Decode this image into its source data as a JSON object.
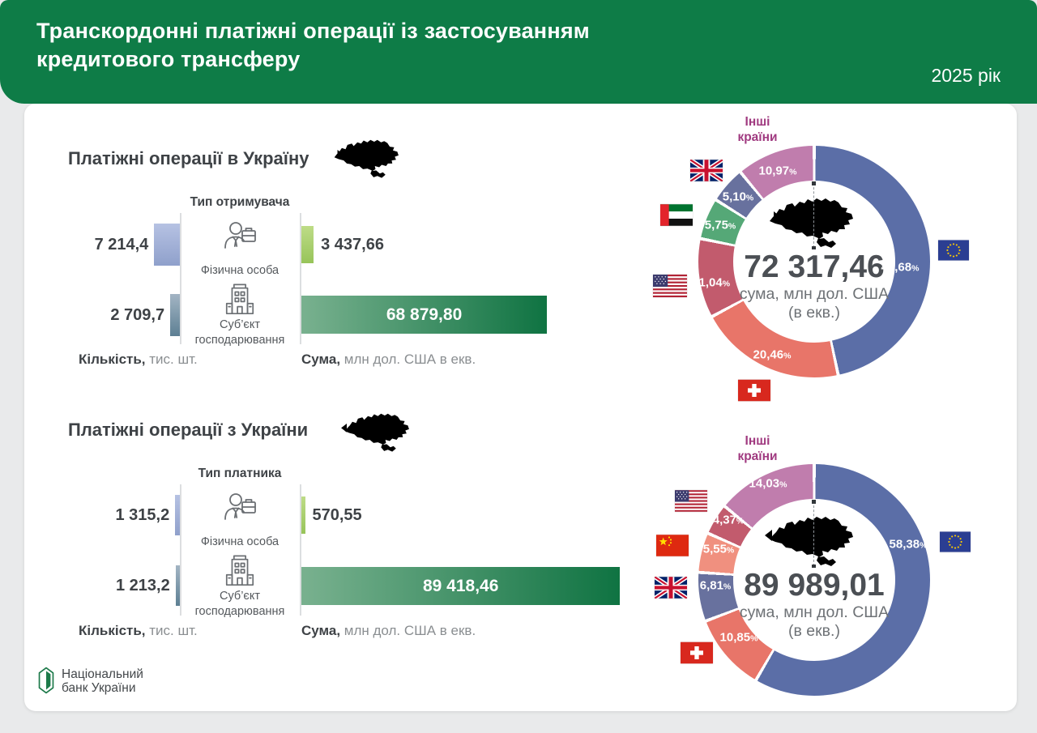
{
  "header": {
    "title": "Транскордонні платіжні операції із застосуванням кредитового трансферу",
    "year": "2025 рік",
    "accent_color": "#0e7c47"
  },
  "percent_sign": "%",
  "sections": [
    {
      "title": "Платіжні операції в Україну",
      "map_icon": "ukraine-map-arrow-in",
      "type_label": "Тип отримувача",
      "rows": [
        {
          "label": "Фізична особа",
          "icon": "person-icon",
          "count": "7 214,4",
          "count_num": 7214.4,
          "sum": "3 437,66",
          "sum_num": 3437.66
        },
        {
          "label_line1": "Суб’єкт",
          "label_line2": "господарювання",
          "icon": "building-icon",
          "count": "2 709,7",
          "count_num": 2709.7,
          "sum": "68 879,80",
          "sum_num": 68879.8
        }
      ],
      "count_axis_bold": "Кількість,",
      "count_axis_rest": " тис. шт.",
      "sum_axis_bold": "Сума,",
      "sum_axis_rest": " млн дол. США в екв."
    },
    {
      "title": "Платіжні операції з України",
      "map_icon": "ukraine-map-arrow-out",
      "type_label": "Тип платника",
      "rows": [
        {
          "label": "Фізична особа",
          "icon": "person-icon",
          "count": "1 315,2",
          "count_num": 1315.2,
          "sum": "570,55",
          "sum_num": 570.55
        },
        {
          "label_line1": "Суб’єкт",
          "label_line2": "господарювання",
          "icon": "building-icon",
          "count": "1 213,2",
          "count_num": 1213.2,
          "sum": "89 418,46",
          "sum_num": 89418.46
        }
      ],
      "count_axis_bold": "Кількість,",
      "count_axis_rest": " тис. шт.",
      "sum_axis_bold": "Сума,",
      "sum_axis_rest": " млн дол. США в екв."
    }
  ],
  "donuts": [
    {
      "other_line1": "Інші",
      "other_line2": "країни",
      "total": "72 317,46",
      "unit": "сума, млн дол. США",
      "unit2": "(в екв.)",
      "segments": [
        {
          "country": "Європейський Союз",
          "flag": "flag-eu-icon",
          "pct": 46.68,
          "label": "46,68",
          "color": "#5b6ea7"
        },
        {
          "country": "Швейцарія",
          "flag": "flag-switzerland-icon",
          "pct": 20.46,
          "label": "20,46",
          "color": "#e87569"
        },
        {
          "country": "США",
          "flag": "flag-usa-icon",
          "pct": 11.04,
          "label": "11,04",
          "color": "#c25b6d"
        },
        {
          "country": "ОАЕ",
          "flag": "flag-uae-icon",
          "pct": 5.75,
          "label": "5,75",
          "color": "#55a877"
        },
        {
          "country": "Велика Британія",
          "flag": "flag-uk-icon",
          "pct": 5.1,
          "label": "5,10",
          "color": "#68719e"
        },
        {
          "country": "Інші країни",
          "flag": "",
          "pct": 10.97,
          "label": "10,97",
          "color": "#c07dad"
        }
      ]
    },
    {
      "other_line1": "Інші",
      "other_line2": "країни",
      "total": "89 989,01",
      "unit": "сума, млн дол. США",
      "unit2": "(в екв.)",
      "segments": [
        {
          "country": "Європейський Союз",
          "flag": "flag-eu-icon",
          "pct": 58.38,
          "label": "58,38",
          "color": "#5b6ea7"
        },
        {
          "country": "Швейцарія",
          "flag": "flag-switzerland-icon",
          "pct": 10.85,
          "label": "10,85",
          "color": "#e87569"
        },
        {
          "country": "Велика Британія",
          "flag": "flag-uk-icon",
          "pct": 6.81,
          "label": "6,81",
          "color": "#68719e"
        },
        {
          "country": "Китай",
          "flag": "flag-china-icon",
          "pct": 5.55,
          "label": "5,55",
          "color": "#f0907f"
        },
        {
          "country": "США",
          "flag": "flag-usa-icon",
          "pct": 4.37,
          "label": "4,37",
          "color": "#c25b6d"
        },
        {
          "country": "Інші країни",
          "flag": "",
          "pct": 14.03,
          "label": "14,03",
          "color": "#c07dad"
        }
      ]
    }
  ],
  "logo": {
    "line1": "Національний",
    "line2": "банк України"
  },
  "chart_data": [
    {
      "type": "bar",
      "title": "Платіжні операції в Україну — тип отримувача",
      "categories": [
        "Фізична особа",
        "Суб’єкт господарювання"
      ],
      "series": [
        {
          "name": "Кількість, тис. шт.",
          "values": [
            7214.4,
            2709.7
          ]
        },
        {
          "name": "Сума, млн дол. США в екв.",
          "values": [
            3437.66,
            68879.8
          ]
        }
      ]
    },
    {
      "type": "bar",
      "title": "Платіжні операції з України — тип платника",
      "categories": [
        "Фізична особа",
        "Суб’єкт господарювання"
      ],
      "series": [
        {
          "name": "Кількість, тис. шт.",
          "values": [
            1315.2,
            1213.2
          ]
        },
        {
          "name": "Сума, млн дол. США в екв.",
          "values": [
            570.55,
            89418.46
          ]
        }
      ]
    },
    {
      "type": "pie",
      "title": "Платіжні операції в Україну за країнами",
      "total": 72317.46,
      "unit": "млн дол. США (в екв.)",
      "labels": [
        "Європейський Союз",
        "Швейцарія",
        "США",
        "ОАЕ",
        "Велика Британія",
        "Інші країни"
      ],
      "values": [
        46.68,
        20.46,
        11.04,
        5.75,
        5.1,
        10.97
      ]
    },
    {
      "type": "pie",
      "title": "Платіжні операції з України за країнами",
      "total": 89989.01,
      "unit": "млн дол. США (в екв.)",
      "labels": [
        "Європейський Союз",
        "Швейцарія",
        "Велика Британія",
        "Китай",
        "США",
        "Інші країни"
      ],
      "values": [
        58.38,
        10.85,
        6.81,
        5.55,
        4.37,
        14.03
      ]
    }
  ]
}
